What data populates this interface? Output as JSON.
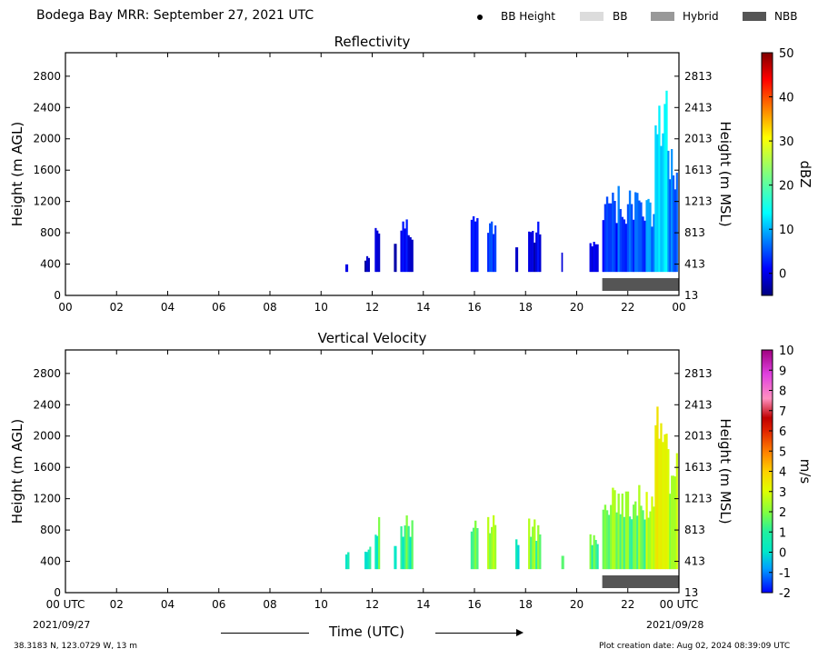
{
  "header": {
    "title": "Bodega Bay MRR:  September 27, 2021 UTC",
    "legend": [
      {
        "label": "BB Height",
        "marker": "dot",
        "color": "#000000"
      },
      {
        "label": "BB",
        "marker": "box",
        "color": "#dcdcdc"
      },
      {
        "label": "Hybrid",
        "marker": "box",
        "color": "#999999"
      },
      {
        "label": "NBB",
        "marker": "box",
        "color": "#555555"
      }
    ]
  },
  "footer": {
    "x_axis_title": "Time (UTC)",
    "location": "38.3183 N, 123.0729 W, 13 m",
    "creation": "Plot creation date: Aug 02, 2024 08:39:09 UTC",
    "date_start": "2021/09/27",
    "date_end": "2021/09/28"
  },
  "chart_data": [
    {
      "type": "heatmap",
      "title": "Reflectivity",
      "ylabel": "Height (m AGL)",
      "ylabel_right": "Height (m MSL)",
      "xlim": [
        0,
        24
      ],
      "ylim": [
        0,
        3100
      ],
      "x_ticks": [
        "00",
        "02",
        "04",
        "06",
        "08",
        "10",
        "12",
        "14",
        "16",
        "18",
        "20",
        "22",
        "00"
      ],
      "y_ticks": [
        0,
        400,
        800,
        1200,
        1600,
        2000,
        2400,
        2800
      ],
      "y_ticks_right": [
        13,
        413,
        813,
        1213,
        1613,
        2013,
        2413,
        2813
      ],
      "colorbar": {
        "label": "dBZ",
        "min": -5,
        "max": 50,
        "ticks": [
          0,
          10,
          20,
          30,
          40,
          50
        ],
        "colormap": "jet"
      },
      "echo_segments": [
        {
          "x": [
            10.95,
            11.05
          ],
          "y": [
            300,
            400
          ],
          "value": -2
        },
        {
          "x": [
            11.7,
            11.9
          ],
          "y": [
            300,
            550
          ],
          "value": -1
        },
        {
          "x": [
            12.1,
            12.3
          ],
          "y": [
            300,
            1000
          ],
          "value": 0
        },
        {
          "x": [
            12.85,
            12.95
          ],
          "y": [
            300,
            800
          ],
          "value": -2
        },
        {
          "x": [
            13.1,
            13.6
          ],
          "y": [
            300,
            1000
          ],
          "value": 1
        },
        {
          "x": [
            15.85,
            16.15
          ],
          "y": [
            300,
            1100
          ],
          "value": 2
        },
        {
          "x": [
            16.5,
            16.85
          ],
          "y": [
            300,
            1100
          ],
          "value": 6
        },
        {
          "x": [
            17.6,
            17.7
          ],
          "y": [
            300,
            750
          ],
          "value": 0
        },
        {
          "x": [
            18.1,
            18.6
          ],
          "y": [
            300,
            950
          ],
          "value": 0
        },
        {
          "x": [
            19.4,
            19.45
          ],
          "y": [
            300,
            550
          ],
          "value": -3
        },
        {
          "x": [
            20.5,
            20.85
          ],
          "y": [
            300,
            700
          ],
          "value": -1
        },
        {
          "x": [
            21.0,
            21.6
          ],
          "y": [
            300,
            1350
          ],
          "value": 4
        },
        {
          "x": [
            21.6,
            22.7
          ],
          "y": [
            300,
            1400
          ],
          "value": 6
        },
        {
          "x": [
            22.7,
            23.05
          ],
          "y": [
            300,
            1300
          ],
          "value": 9
        },
        {
          "x": [
            23.05,
            23.55
          ],
          "y": [
            300,
            2800
          ],
          "value": 14
        },
        {
          "x": [
            23.55,
            23.95
          ],
          "y": [
            300,
            1900
          ],
          "value": 7
        }
      ],
      "bb_type_bar": {
        "type": "NBB",
        "x": [
          21.0,
          24.0
        ]
      }
    },
    {
      "type": "heatmap",
      "title": "Vertical Velocity",
      "ylabel": "Height (m AGL)",
      "ylabel_right": "Height (m MSL)",
      "xlim": [
        0,
        24
      ],
      "ylim": [
        0,
        3100
      ],
      "x_ticks": [
        "00 UTC",
        "02",
        "04",
        "06",
        "08",
        "10",
        "12",
        "14",
        "16",
        "18",
        "20",
        "22",
        "00 UTC"
      ],
      "y_ticks": [
        0,
        400,
        800,
        1200,
        1600,
        2000,
        2400,
        2800
      ],
      "y_ticks_right": [
        13,
        413,
        813,
        1213,
        1613,
        2013,
        2413,
        2813
      ],
      "colorbar": {
        "label": "m/s",
        "min": -2,
        "max": 10,
        "ticks": [
          -2,
          -1,
          0,
          1,
          2,
          3,
          4,
          5,
          6,
          7,
          8,
          9,
          10
        ]
      },
      "echo_segments": [
        {
          "x": [
            10.95,
            11.1
          ],
          "y": [
            300,
            550
          ],
          "value": 0
        },
        {
          "x": [
            11.7,
            11.95
          ],
          "y": [
            300,
            600
          ],
          "value": 0
        },
        {
          "x": [
            12.1,
            12.3
          ],
          "y": [
            300,
            1000
          ],
          "value": 0.5
        },
        {
          "x": [
            12.85,
            12.95
          ],
          "y": [
            300,
            800
          ],
          "value": 0.5
        },
        {
          "x": [
            13.1,
            13.6
          ],
          "y": [
            300,
            1000
          ],
          "value": 0.5
        },
        {
          "x": [
            15.85,
            16.15
          ],
          "y": [
            300,
            1100
          ],
          "value": 1
        },
        {
          "x": [
            16.5,
            16.85
          ],
          "y": [
            300,
            1100
          ],
          "value": 1.5
        },
        {
          "x": [
            17.6,
            17.75
          ],
          "y": [
            300,
            750
          ],
          "value": 0
        },
        {
          "x": [
            18.1,
            18.6
          ],
          "y": [
            300,
            950
          ],
          "value": 1
        },
        {
          "x": [
            19.4,
            19.5
          ],
          "y": [
            300,
            550
          ],
          "value": 1
        },
        {
          "x": [
            20.5,
            20.85
          ],
          "y": [
            300,
            750
          ],
          "value": 0.5
        },
        {
          "x": [
            21.0,
            21.6
          ],
          "y": [
            300,
            1350
          ],
          "value": 1
        },
        {
          "x": [
            21.6,
            22.7
          ],
          "y": [
            300,
            1400
          ],
          "value": 1
        },
        {
          "x": [
            22.7,
            23.05
          ],
          "y": [
            300,
            1300
          ],
          "value": 1.5
        },
        {
          "x": [
            23.05,
            23.55
          ],
          "y": [
            300,
            2800
          ],
          "value": 2.5
        },
        {
          "x": [
            23.55,
            23.95
          ],
          "y": [
            300,
            1900
          ],
          "value": 1.5
        }
      ],
      "bb_type_bar": {
        "type": "NBB",
        "x": [
          21.0,
          24.0
        ]
      }
    }
  ]
}
